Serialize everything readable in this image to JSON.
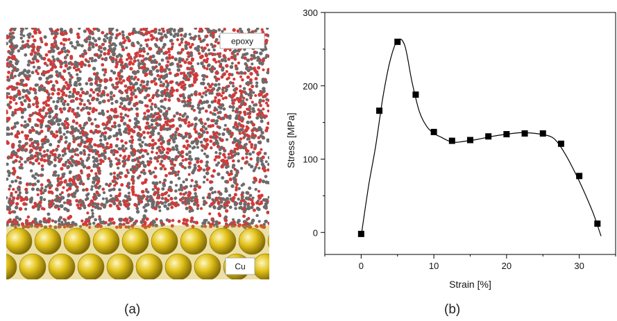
{
  "panel_a": {
    "caption": "(a)",
    "label_top": "epoxy",
    "label_bottom": "Cu",
    "colors": {
      "oxygen": "#d23a3a",
      "carbon": "#6b6b6b",
      "copper": "#e2c21a",
      "copper_highlight": "#fff7c0"
    }
  },
  "panel_b": {
    "caption": "(b)"
  },
  "chart_data": {
    "type": "line",
    "title": "",
    "xlabel": "Strain [%]",
    "ylabel": "Stress [MPa]",
    "xlim": [
      -5,
      35
    ],
    "ylim": [
      -30,
      300
    ],
    "xticks": [
      0,
      10,
      20,
      30
    ],
    "yticks": [
      0,
      100,
      200,
      300
    ],
    "x": [
      0,
      2.5,
      5,
      7.5,
      10,
      12.5,
      15,
      17.5,
      20,
      22.5,
      25,
      27.5,
      30,
      32.5
    ],
    "y": [
      -2,
      166,
      260,
      188,
      137,
      125,
      126,
      131,
      134,
      135,
      135,
      121,
      77,
      12
    ],
    "curve": {
      "x": [
        0,
        1,
        2,
        3,
        4,
        5,
        6,
        7,
        8,
        9,
        10,
        11,
        12,
        13,
        14,
        16,
        18,
        20,
        22,
        24,
        26,
        27,
        28,
        29,
        30,
        31,
        32,
        33
      ],
      "y": [
        -5,
        62,
        118,
        185,
        235,
        262,
        255,
        205,
        165,
        145,
        135,
        130,
        125,
        123,
        124,
        127,
        131,
        134,
        136,
        135,
        131,
        123,
        108,
        90,
        70,
        48,
        24,
        -5
      ]
    },
    "marker": "square",
    "color": "#000000"
  }
}
